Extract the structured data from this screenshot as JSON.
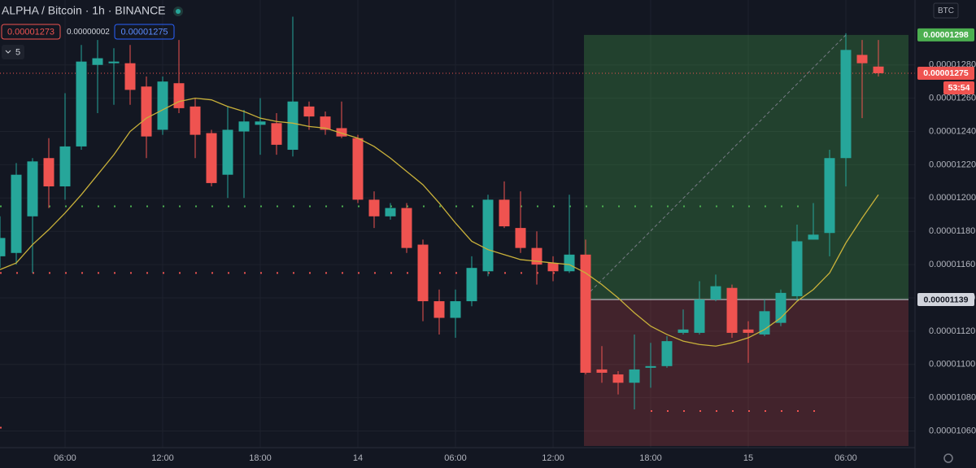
{
  "header": {
    "symbol": "ALPHA / Bitcoin · 1h · BINANCE",
    "bid": "0.00001273",
    "spread": "0.00000002",
    "ask": "0.00001275",
    "interval": "5",
    "currency": "BTC"
  },
  "chart_data": {
    "type": "candlestick",
    "categories": [
      null,
      null,
      null,
      null,
      "06:00",
      null,
      null,
      null,
      null,
      null,
      "12:00",
      null,
      null,
      null,
      null,
      null,
      "18:00",
      null,
      null,
      null,
      null,
      null,
      "14",
      null,
      null,
      null,
      null,
      null,
      "06:00",
      null,
      null,
      null,
      null,
      null,
      "12:00",
      null,
      null,
      null,
      null,
      null,
      "18:00",
      null,
      null,
      null,
      null,
      null,
      "15",
      null,
      null,
      null,
      null,
      null,
      "06:00",
      null,
      null
    ],
    "open": [
      1.165e-05,
      1.167e-05,
      1.189e-05,
      1.224e-05,
      1.207e-05,
      1.231e-05,
      1.28e-05,
      1.281e-05,
      1.281e-05,
      1.267e-05,
      1.241e-05,
      1.269e-05,
      1.255e-05,
      1.239e-05,
      1.214e-05,
      1.24e-05,
      1.244e-05,
      1.245e-05,
      1.229e-05,
      1.255e-05,
      1.249e-05,
      1.242e-05,
      1.236e-05,
      1.199e-05,
      1.189e-05,
      1.194e-05,
      1.172e-05,
      1.138e-05,
      1.128e-05,
      1.138e-05,
      1.156e-05,
      1.199e-05,
      1.182e-05,
      1.17e-05,
      1.161e-05,
      1.156e-05,
      1.166e-05,
      1.097e-05,
      1.094e-05,
      1.089e-05,
      1.098e-05,
      1.099e-05,
      1.119e-05,
      1.119e-05,
      1.139e-05,
      1.146e-05,
      1.121e-05,
      1.118e-05,
      1.125e-05,
      1.141e-05,
      1.175e-05,
      1.179e-05,
      1.224e-05,
      1.286e-05,
      1.279e-05
    ],
    "high": [
      1.189e-05,
      1.221e-05,
      1.224e-05,
      1.236e-05,
      1.263e-05,
      1.292e-05,
      1.295e-05,
      1.29e-05,
      1.292e-05,
      1.273e-05,
      1.273e-05,
      1.295e-05,
      1.26e-05,
      1.241e-05,
      1.255e-05,
      1.253e-05,
      1.26e-05,
      1.251e-05,
      1.309e-05,
      1.258e-05,
      1.252e-05,
      1.258e-05,
      1.238e-05,
      1.204e-05,
      1.197e-05,
      1.197e-05,
      1.175e-05,
      1.145e-05,
      1.145e-05,
      1.165e-05,
      1.202e-05,
      1.21e-05,
      1.204e-05,
      1.18e-05,
      1.165e-05,
      1.202e-05,
      1.175e-05,
      1.111e-05,
      1.096e-05,
      1.118e-05,
      1.113e-05,
      1.117e-05,
      1.133e-05,
      1.15e-05,
      1.154e-05,
      1.148e-05,
      1.126e-05,
      1.139e-05,
      1.145e-05,
      1.184e-05,
      1.197e-05,
      1.229e-05,
      1.299e-05,
      1.295e-05,
      1.295e-05
    ],
    "low": [
      1.158e-05,
      1.16e-05,
      1.155e-05,
      1.194e-05,
      1.199e-05,
      1.229e-05,
      1.251e-05,
      1.256e-05,
      1.256e-05,
      1.224e-05,
      1.238e-05,
      1.251e-05,
      1.224e-05,
      1.207e-05,
      1.2e-05,
      1.2e-05,
      1.226e-05,
      1.226e-05,
      1.225e-05,
      1.241e-05,
      1.238e-05,
      1.236e-05,
      1.197e-05,
      1.182e-05,
      1.187e-05,
      1.167e-05,
      1.126e-05,
      1.118e-05,
      1.116e-05,
      1.135e-05,
      1.153e-05,
      1.182e-05,
      1.167e-05,
      1.148e-05,
      1.15e-05,
      1.155e-05,
      1.094e-05,
      1.089e-05,
      1.082e-05,
      1.073e-05,
      1.086e-05,
      1.098e-05,
      1.118e-05,
      1.118e-05,
      1.138e-05,
      1.116e-05,
      1.101e-05,
      1.117e-05,
      1.123e-05,
      1.138e-05,
      1.175e-05,
      1.165e-05,
      1.207e-05,
      1.248e-05,
      1.273e-05
    ],
    "close": [
      1.176e-05,
      1.214e-05,
      1.222e-05,
      1.207e-05,
      1.231e-05,
      1.282e-05,
      1.284e-05,
      1.282e-05,
      1.265e-05,
      1.237e-05,
      1.27e-05,
      1.254e-05,
      1.238e-05,
      1.209e-05,
      1.241e-05,
      1.246e-05,
      1.246e-05,
      1.232e-05,
      1.258e-05,
      1.249e-05,
      1.241e-05,
      1.237e-05,
      1.199e-05,
      1.189e-05,
      1.194e-05,
      1.17e-05,
      1.138e-05,
      1.128e-05,
      1.138e-05,
      1.158e-05,
      1.199e-05,
      1.183e-05,
      1.17e-05,
      1.16e-05,
      1.156e-05,
      1.166e-05,
      1.095e-05,
      1.095e-05,
      1.089e-05,
      1.097e-05,
      1.099e-05,
      1.114e-05,
      1.121e-05,
      1.139e-05,
      1.147e-05,
      1.119e-05,
      1.119e-05,
      1.132e-05,
      1.143e-05,
      1.174e-05,
      1.178e-05,
      1.224e-05,
      1.289e-05,
      1.281e-05,
      1.275e-05
    ],
    "up_color": "#26a69a",
    "down_color": "#ef5350",
    "ma": {
      "color": "#c9b13a",
      "values": [
        1.157e-05,
        1.161e-05,
        1.172e-05,
        1.181e-05,
        1.191e-05,
        1.202e-05,
        1.214e-05,
        1.226e-05,
        1.24e-05,
        1.248e-05,
        1.253e-05,
        1.258e-05,
        1.26e-05,
        1.259e-05,
        1.255e-05,
        1.252e-05,
        1.248e-05,
        1.246e-05,
        1.245e-05,
        1.243e-05,
        1.242e-05,
        1.239e-05,
        1.236e-05,
        1.231e-05,
        1.224e-05,
        1.216e-05,
        1.208e-05,
        1.197e-05,
        1.185e-05,
        1.174e-05,
        1.169e-05,
        1.166e-05,
        1.163e-05,
        1.162e-05,
        1.161e-05,
        1.16e-05,
        1.155e-05,
        1.148e-05,
        1.14e-05,
        1.131e-05,
        1.123e-05,
        1.118e-05,
        1.114e-05,
        1.112e-05,
        1.111e-05,
        1.113e-05,
        1.116e-05,
        1.121e-05,
        1.128e-05,
        1.138e-05,
        1.145e-05,
        1.155e-05,
        1.173e-05,
        1.188e-05,
        1.202e-05
      ]
    },
    "levels": [
      {
        "value": 1.195e-05,
        "color": "#4caf50"
      },
      {
        "value": 1.155e-05,
        "color": "#ef5350"
      },
      {
        "value": 1.072e-05,
        "color": "#ef5350"
      },
      {
        "value": 1.062e-05,
        "color": "#ef5350"
      }
    ],
    "position": {
      "target": {
        "value": 1.298e-05,
        "label": "0.00001298"
      },
      "entry": {
        "value": 1.139e-05,
        "label": "0.00001139"
      },
      "stop": 1.051e-05
    },
    "last_price": {
      "value": 1.275e-05,
      "label": "0.00001275"
    },
    "countdown": "53:54",
    "ylim": [
      1.05e-05,
      1.319e-05
    ],
    "yticks": [
      {
        "value": 1.06e-05,
        "label": "0.00001060"
      },
      {
        "value": 1.08e-05,
        "label": "0.00001080"
      },
      {
        "value": 1.1e-05,
        "label": "0.00001100"
      },
      {
        "value": 1.12e-05,
        "label": "0.00001120"
      },
      {
        "value": 1.14e-05,
        "label": "0.00001140"
      },
      {
        "value": 1.16e-05,
        "label": "0.00001160"
      },
      {
        "value": 1.18e-05,
        "label": "0.00001180"
      },
      {
        "value": 1.2e-05,
        "label": "0.00001200"
      },
      {
        "value": 1.22e-05,
        "label": "0.00001220"
      },
      {
        "value": 1.24e-05,
        "label": "0.00001240"
      },
      {
        "value": 1.26e-05,
        "label": "0.00001260"
      },
      {
        "value": 1.28e-05,
        "label": "0.00001280"
      }
    ],
    "grid": true
  }
}
